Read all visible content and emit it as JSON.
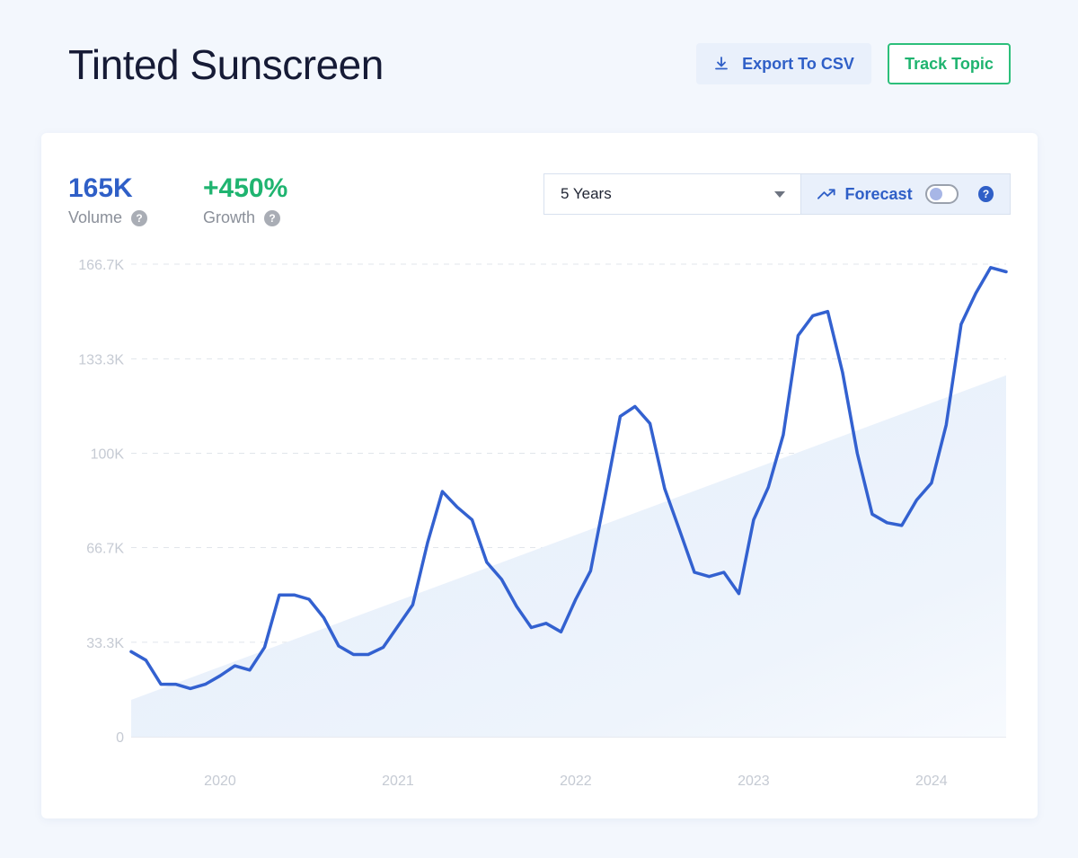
{
  "header": {
    "title": "Tinted Sunscreen",
    "export_label": "Export To CSV",
    "track_label": "Track Topic"
  },
  "stats": {
    "volume": {
      "value": "165K",
      "label": "Volume"
    },
    "growth": {
      "value": "+450%",
      "label": "Growth"
    }
  },
  "controls": {
    "range_selected": "5 Years",
    "forecast_label": "Forecast",
    "forecast_enabled": false,
    "help_glyph": "?"
  },
  "colors": {
    "accent": "#2f5fc7",
    "line": "#3361d0",
    "growth": "#1fb470",
    "trend_fill": "#e6effb"
  },
  "icons": {
    "export": "download-icon",
    "forecast": "trending-up-icon",
    "help": "question-circle-icon",
    "dropdown": "caret-down-icon"
  },
  "chart_data": {
    "type": "line",
    "title": "",
    "xlabel": "",
    "ylabel": "",
    "ylim": [
      0,
      166700
    ],
    "yticks": [
      0,
      33300,
      66700,
      100000,
      133300,
      166700
    ],
    "ytick_labels": [
      "0",
      "33.3K",
      "66.7K",
      "100K",
      "133.3K",
      "166.7K"
    ],
    "xtick_labels": [
      "2020",
      "2021",
      "2022",
      "2023",
      "2024"
    ],
    "xtick_positions": [
      2020.0,
      2021.0,
      2022.0,
      2023.0,
      2024.0
    ],
    "x_range": [
      2019.5,
      2024.42
    ],
    "grid": true,
    "legend": "none",
    "series": [
      {
        "x": [
          2019.5,
          2019.583,
          2019.667,
          2019.75,
          2019.833,
          2019.917,
          2020.0,
          2020.083,
          2020.167,
          2020.25,
          2020.333,
          2020.417,
          2020.5,
          2020.583,
          2020.667,
          2020.75,
          2020.833,
          2020.917,
          2021.0,
          2021.083,
          2021.167,
          2021.25,
          2021.333,
          2021.417,
          2021.5,
          2021.583,
          2021.667,
          2021.75,
          2021.833,
          2021.917,
          2022.0,
          2022.083,
          2022.167,
          2022.25,
          2022.333,
          2022.417,
          2022.5,
          2022.583,
          2022.667,
          2022.75,
          2022.833,
          2022.917,
          2023.0,
          2023.083,
          2023.167,
          2023.25,
          2023.333,
          2023.417,
          2023.5,
          2023.583,
          2023.667,
          2023.75,
          2023.833,
          2023.917,
          2024.0,
          2024.083,
          2024.167,
          2024.25,
          2024.333,
          2024.42
        ],
        "values": [
          30000,
          27000,
          18500,
          18500,
          17000,
          18500,
          21500,
          25000,
          23500,
          31500,
          50000,
          50000,
          48500,
          42000,
          32000,
          29000,
          29000,
          31500,
          39000,
          46500,
          68500,
          86500,
          81000,
          76500,
          61500,
          55500,
          46000,
          38500,
          40000,
          37000,
          48500,
          58500,
          85500,
          113000,
          116500,
          110500,
          87500,
          73000,
          58000,
          56500,
          58000,
          50500,
          76500,
          88000,
          106500,
          141500,
          148500,
          150000,
          128500,
          100000,
          78500,
          75500,
          74500,
          83500,
          89500,
          110000,
          145500,
          156500,
          165500,
          164000
        ]
      }
    ],
    "trend": {
      "type": "area",
      "x": [
        2019.5,
        2024.42
      ],
      "values": [
        13000,
        127500
      ]
    }
  }
}
